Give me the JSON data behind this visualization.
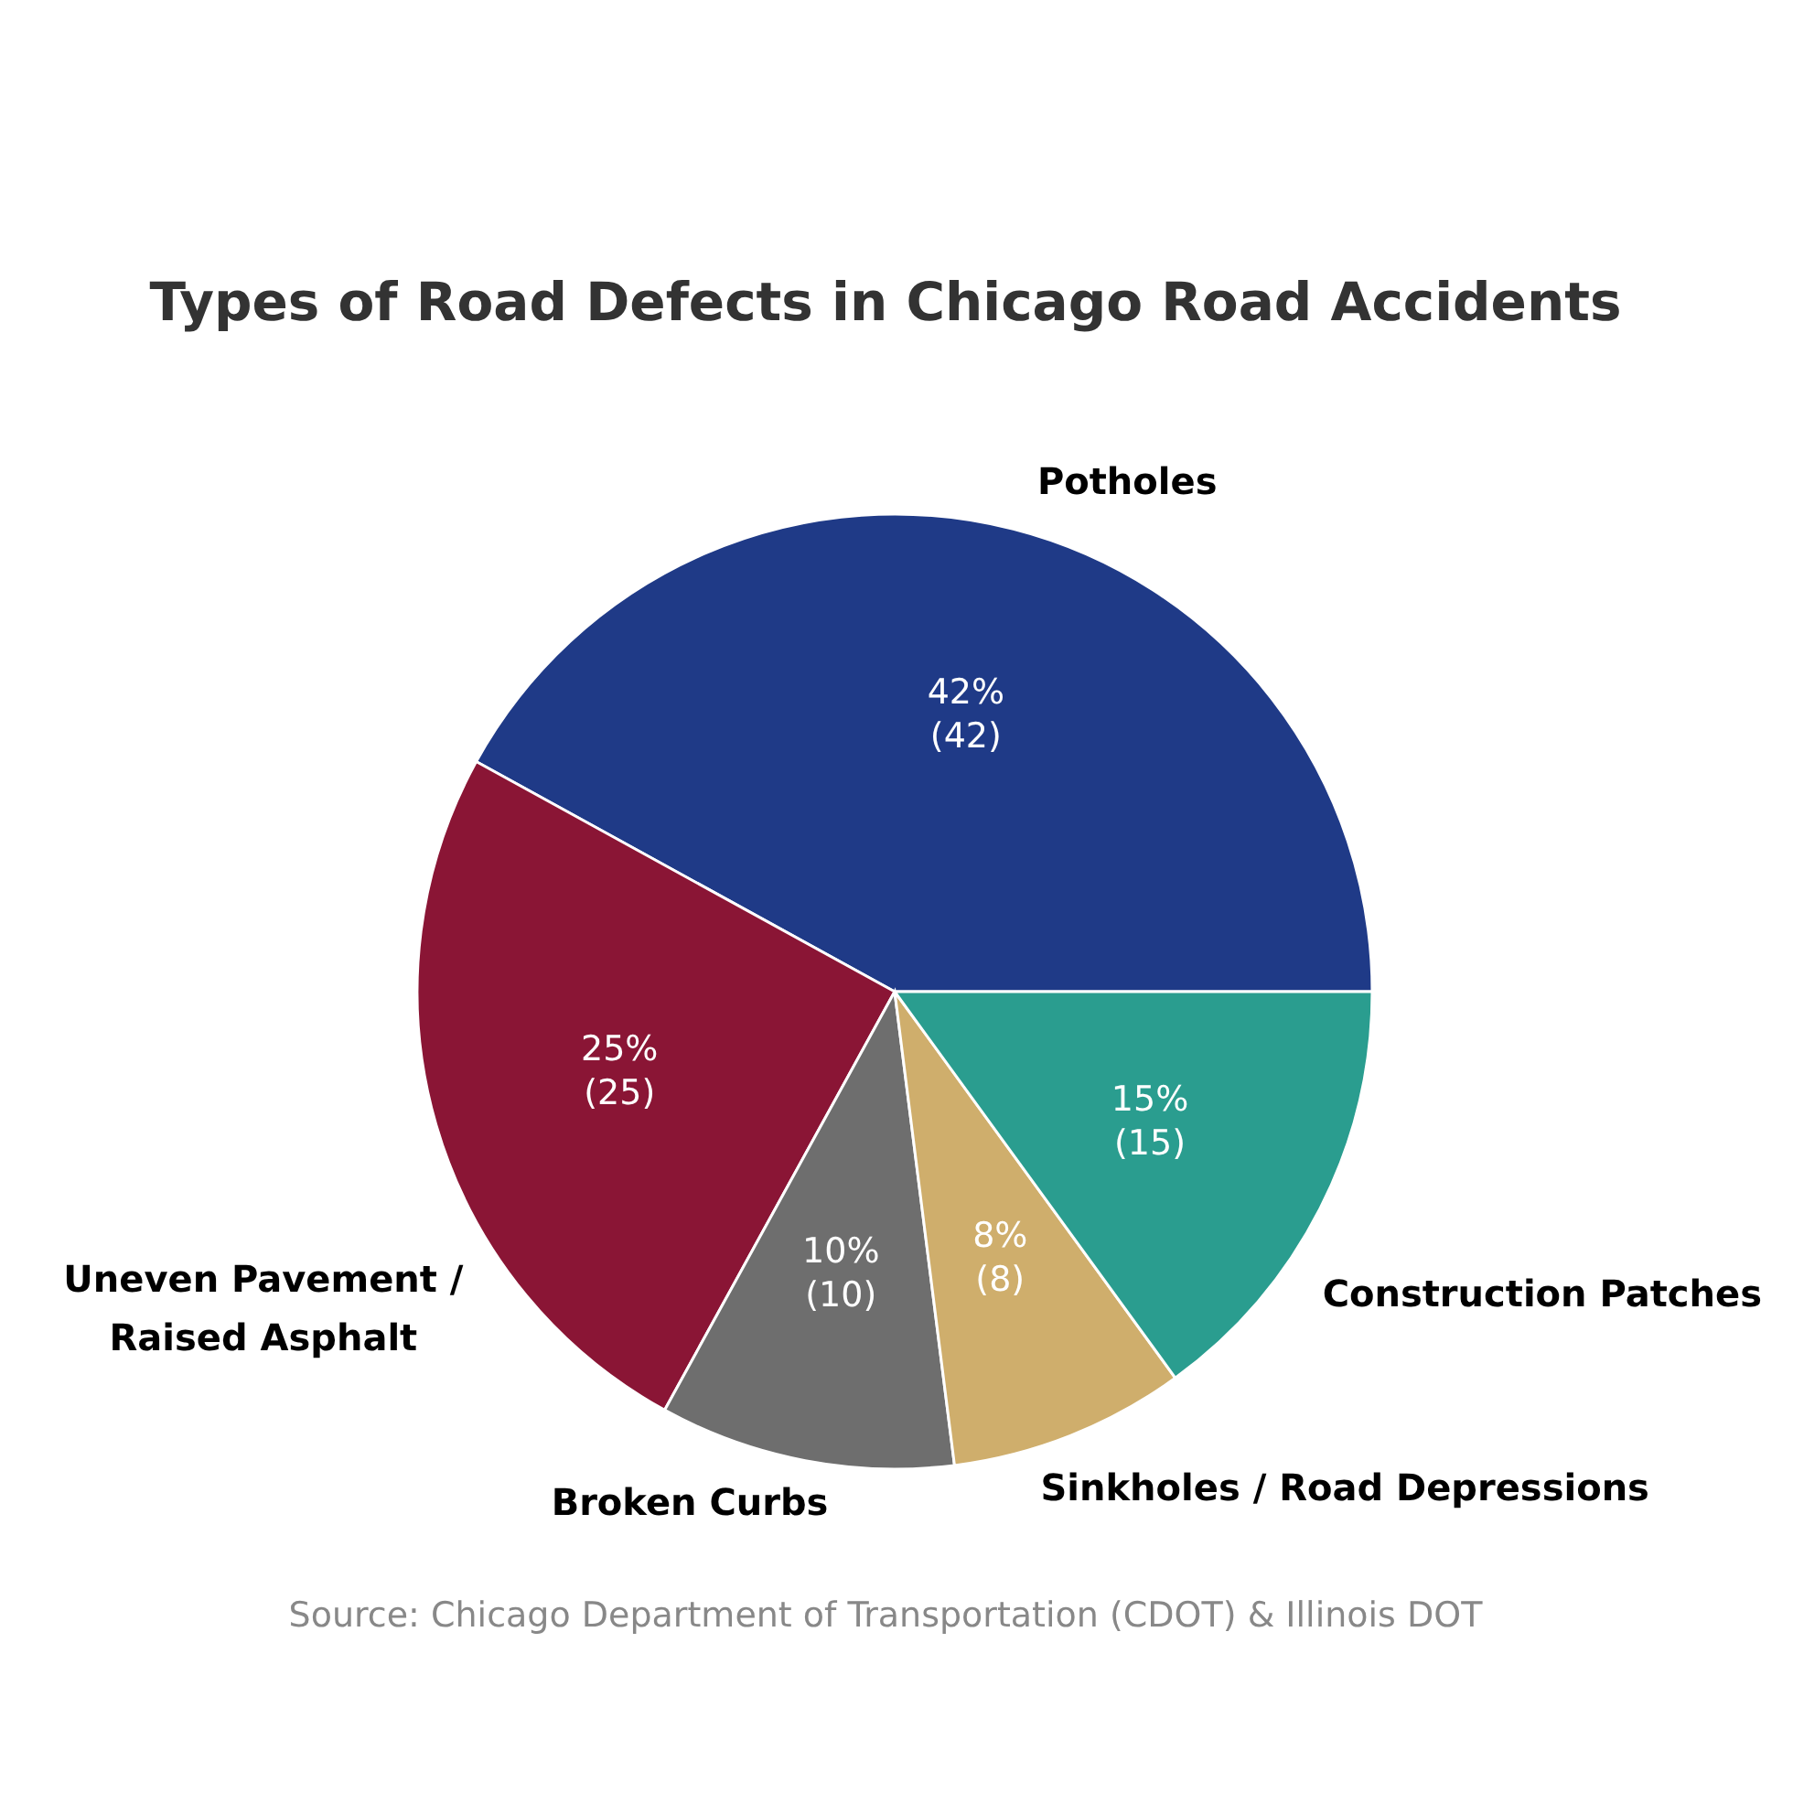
{
  "chart_data": {
    "type": "pie",
    "title": "Types of Road Defects in Chicago Road Accidents",
    "categories": [
      "Potholes",
      "Uneven Pavement /\nRaised Asphalt",
      "Broken Curbs",
      "Sinkholes / Road Depressions",
      "Construction Patches"
    ],
    "values": [
      42,
      25,
      10,
      8,
      15
    ],
    "colors": [
      "#1f3a87",
      "#8a1535",
      "#6e6e6e",
      "#cfae6c",
      "#2a9d8f"
    ],
    "value_labels": [
      "42%\n(42)",
      "25%\n(25)",
      "10%\n(10)",
      "8%\n(8)",
      "15%\n(15)"
    ],
    "annotations": [
      "Source: Chicago Department of Transportation (CDOT) & Illinois DOT"
    ]
  }
}
